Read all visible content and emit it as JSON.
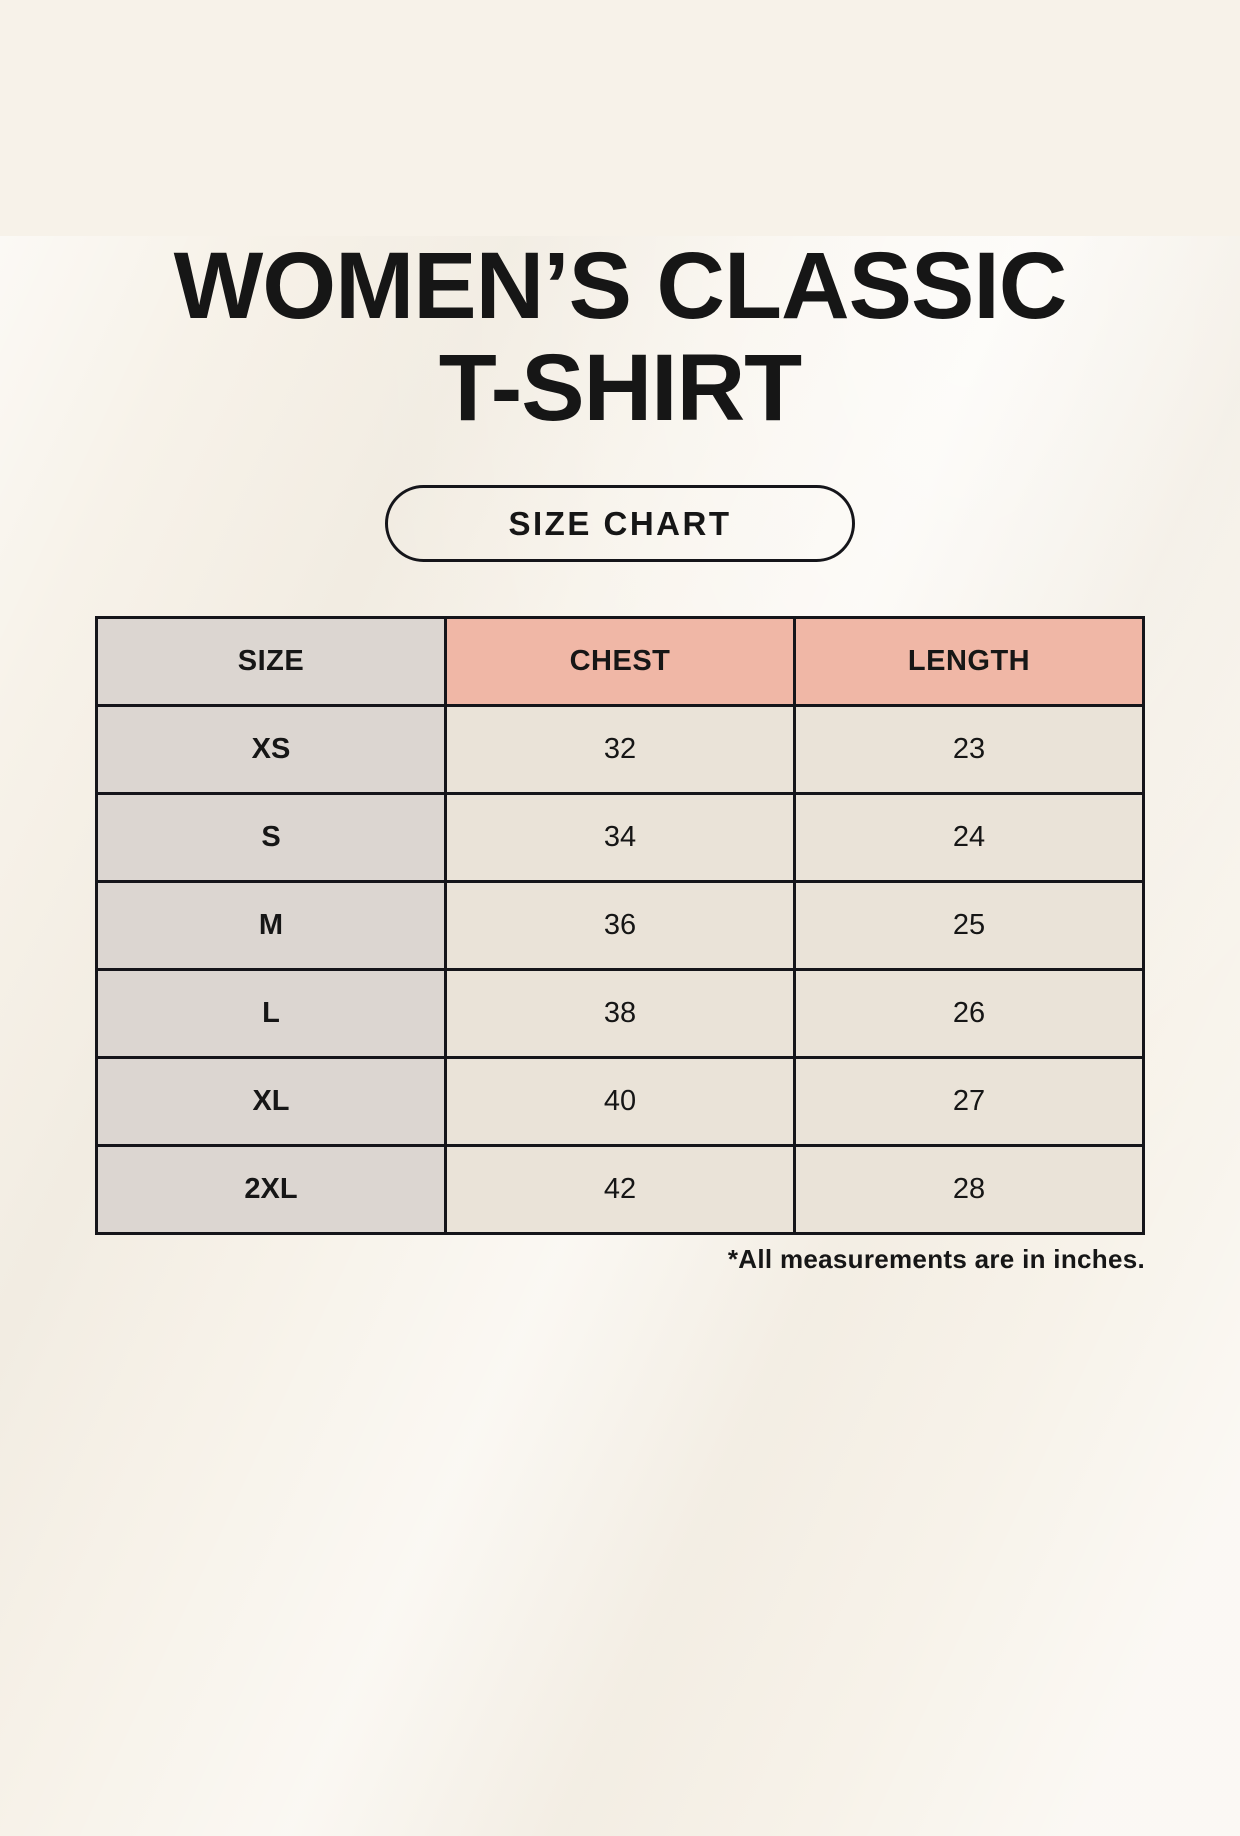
{
  "page": {
    "title_line1": "WOMEN’S CLASSIC",
    "title_line2": "T-SHIRT",
    "size_chart_label": "SIZE CHART",
    "footnote": "*All measurements are in inches."
  },
  "colors": {
    "page_bg": "#f7f2e9",
    "header_size_bg": "#dcd6d1",
    "header_measure_bg": "#f0b7a6",
    "cell_bg": "#eae3d8",
    "border": "#15151a",
    "text": "#161616"
  },
  "table": {
    "headers": [
      "SIZE",
      "CHEST",
      "LENGTH"
    ],
    "rows": [
      {
        "size": "XS",
        "chest": "32",
        "length": "23"
      },
      {
        "size": "S",
        "chest": "34",
        "length": "24"
      },
      {
        "size": "M",
        "chest": "36",
        "length": "25"
      },
      {
        "size": "L",
        "chest": "38",
        "length": "26"
      },
      {
        "size": "XL",
        "chest": "40",
        "length": "27"
      },
      {
        "size": "2XL",
        "chest": "42",
        "length": "28"
      }
    ]
  },
  "chart_data": {
    "type": "table",
    "title": "WOMEN’S CLASSIC T-SHIRT — SIZE CHART",
    "columns": [
      "SIZE",
      "CHEST",
      "LENGTH"
    ],
    "rows": [
      [
        "XS",
        32,
        23
      ],
      [
        "S",
        34,
        24
      ],
      [
        "M",
        36,
        25
      ],
      [
        "L",
        38,
        26
      ],
      [
        "XL",
        40,
        27
      ],
      [
        "2XL",
        42,
        28
      ]
    ],
    "units": "inches",
    "notes": "*All measurements are in inches."
  }
}
